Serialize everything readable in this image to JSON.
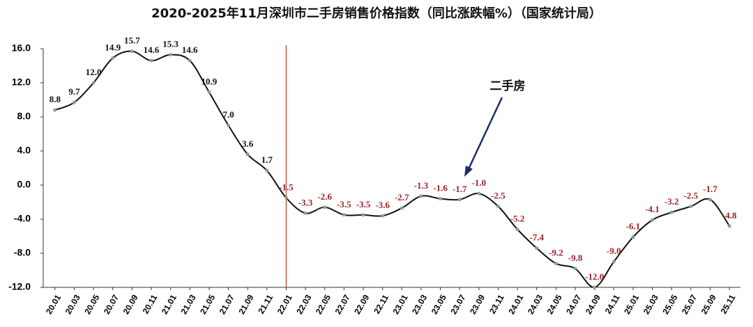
{
  "chart_data": {
    "type": "line",
    "title": "2020-2025年11月深圳市二手房销售价格指数（同比涨跌幅%）（国家统计局）",
    "annotation": "二手房",
    "categories": [
      "20.01",
      "20.03",
      "20.05",
      "20.07",
      "20.09",
      "20.11",
      "21.01",
      "21.03",
      "21.05",
      "21.07",
      "21.09",
      "21.11",
      "22.01",
      "22.03",
      "22.05",
      "22.07",
      "22.09",
      "22.11",
      "23.01",
      "23.03",
      "23.05",
      "23.07",
      "23.09",
      "23.11",
      "24.01",
      "24.03",
      "24.05",
      "24.07",
      "24.09",
      "24.11",
      "25.01",
      "25.03",
      "25.05",
      "25.07",
      "25.09",
      "25.11"
    ],
    "series": [
      {
        "name": "二手房",
        "color": "#111111",
        "values": [
          8.8,
          9.7,
          12.0,
          14.9,
          15.7,
          14.6,
          15.3,
          14.6,
          10.9,
          7.0,
          3.6,
          1.7,
          -1.5,
          -3.3,
          -2.6,
          -3.5,
          -3.5,
          -3.6,
          -2.7,
          -1.3,
          -1.6,
          -1.7,
          -1.0,
          -2.5,
          -5.2,
          -7.4,
          -9.2,
          -9.8,
          -12.0,
          -9.0,
          -6.1,
          -4.1,
          -3.2,
          -2.5,
          -1.7,
          -4.8
        ],
        "value_labels": [
          "8.8",
          "9.7",
          "12.0",
          "14.9",
          "15.7",
          "14.6",
          "15.3",
          "14.6",
          "10.9",
          "7.0",
          "3.6",
          "1.7",
          "-1.5",
          "-3.3",
          "-2.6",
          "-3.5",
          "-3.5",
          "-3.6",
          "-2.7",
          "-1.3",
          "-1.6",
          "-1.7",
          "-1.0",
          "-2.5",
          "-5.2",
          "-7.4",
          "-9.2",
          "-9.8",
          "-12.0",
          "-9.0",
          "-6.1",
          "-4.1",
          "-3.2",
          "-2.5",
          "-1.7",
          "-4.8"
        ]
      }
    ],
    "ylim": [
      -12,
      16
    ],
    "yticks": [
      {
        "value": -12,
        "label": "-12.0"
      },
      {
        "value": -8,
        "label": "-8.0"
      },
      {
        "value": -4,
        "label": "-4.0"
      },
      {
        "value": 0,
        "label": "0.0"
      },
      {
        "value": 4,
        "label": "4.0"
      },
      {
        "value": 8,
        "label": "8.0"
      },
      {
        "value": 12,
        "label": "12.0"
      },
      {
        "value": 16,
        "label": "16.0"
      }
    ],
    "vline": "22.01",
    "vline_color": "#c0392b",
    "marker_color": "#7fa39a",
    "positive_label_color": "#111111",
    "negative_label_color": "#9b2226",
    "grid": false
  }
}
